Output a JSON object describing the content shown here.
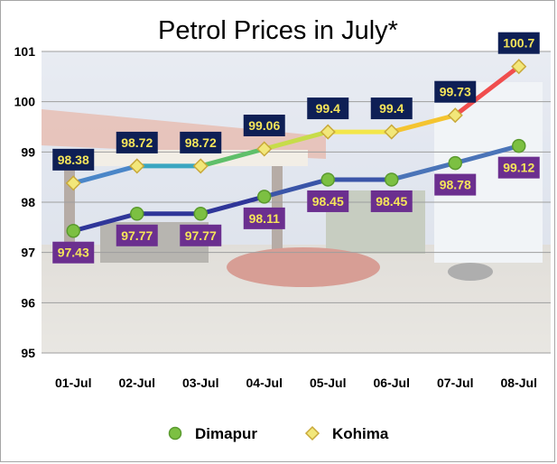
{
  "chart_data": {
    "type": "line",
    "title": "Petrol Prices in July*",
    "categories": [
      "01-Jul",
      "02-Jul",
      "03-Jul",
      "04-Jul",
      "05-Jul",
      "06-Jul",
      "07-Jul",
      "08-Jul"
    ],
    "series": [
      {
        "name": "Dimapur",
        "values": [
          97.43,
          97.77,
          97.77,
          98.11,
          98.45,
          98.45,
          98.78,
          99.12
        ],
        "labels": [
          "97.43",
          "97.77",
          "97.77",
          "98.11",
          "98.45",
          "98.45",
          "98.78",
          "99.12"
        ],
        "label_position": "below",
        "marker": "circle",
        "line_colors": [
          "#2f3699",
          "#3a55a8",
          "#4a74b8"
        ],
        "marker_color": "#7cc042",
        "label_bg": "#6b2f8f",
        "label_text_color": "#f5e55a"
      },
      {
        "name": "Kohima",
        "values": [
          98.38,
          98.72,
          98.72,
          99.06,
          99.4,
          99.4,
          99.73,
          100.7
        ],
        "labels": [
          "98.38",
          "98.72",
          "98.72",
          "99.06",
          "99.4",
          "99.4",
          "99.73",
          "100.7"
        ],
        "label_position": "above",
        "marker": "diamond",
        "line_colors": [
          "#4a86c8",
          "#3aa6c0",
          "#5fbf6a",
          "#c7dc4a",
          "#f3e64a",
          "#f4c430",
          "#f04e4e"
        ],
        "marker_color": "#f2e77a",
        "label_bg": "#0e1f55",
        "label_text_color": "#f5e55a"
      }
    ],
    "ylim": [
      95,
      101
    ],
    "yticks": [
      "95",
      "96",
      "97",
      "98",
      "99",
      "100",
      "101"
    ],
    "grid": true,
    "legend": "bottom",
    "xlabel": "",
    "ylabel": ""
  }
}
